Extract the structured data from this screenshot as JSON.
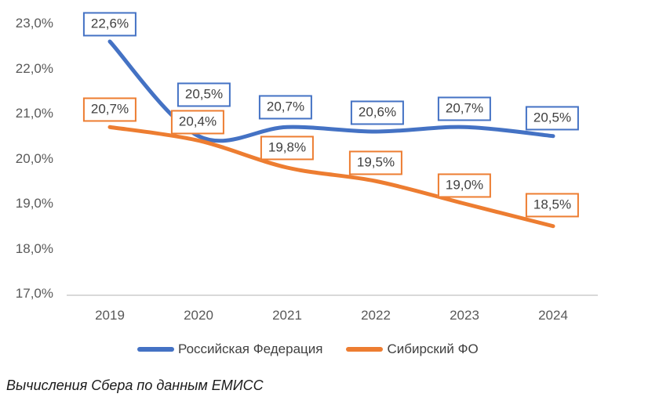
{
  "chart_data": {
    "type": "line",
    "x": [
      2019,
      2020,
      2021,
      2022,
      2023,
      2024
    ],
    "series": [
      {
        "name": "Российская Федерация",
        "values": [
          22.6,
          20.5,
          20.7,
          20.6,
          20.7,
          20.5
        ],
        "labels": [
          "22,6%",
          "20,5%",
          "20,7%",
          "20,6%",
          "20,7%",
          "20,5%"
        ],
        "color": "#4472C4"
      },
      {
        "name": "Сибирский ФО",
        "values": [
          20.7,
          20.4,
          19.8,
          19.5,
          19.0,
          18.5
        ],
        "labels": [
          "20,7%",
          "20,4%",
          "19,8%",
          "19,5%",
          "19,0%",
          "18,5%"
        ],
        "color": "#ED7D31"
      }
    ],
    "x_axis": {
      "ticks": [
        "2019",
        "2020",
        "2021",
        "2022",
        "2023",
        "2024"
      ]
    },
    "y_axis": {
      "ticks": [
        "23,0%",
        "22,0%",
        "21,0%",
        "20,0%",
        "19,0%",
        "18,0%",
        "17,0%"
      ],
      "min": 17.0,
      "max": 23.0,
      "step": 1.0
    },
    "title": "",
    "xlabel": "",
    "ylabel": "",
    "grid": false,
    "legend_position": "bottom",
    "smooth_lines": true,
    "data_labels_boxed": true
  },
  "caption": "Вычисления Сбера по данным ЕМИСС",
  "colors": {
    "series_rf": "#4472C4",
    "series_sfo": "#ED7D31",
    "axis_line": "#d9d9d9",
    "tick_text": "#595959",
    "label_text": "#404040",
    "background": "#ffffff"
  }
}
